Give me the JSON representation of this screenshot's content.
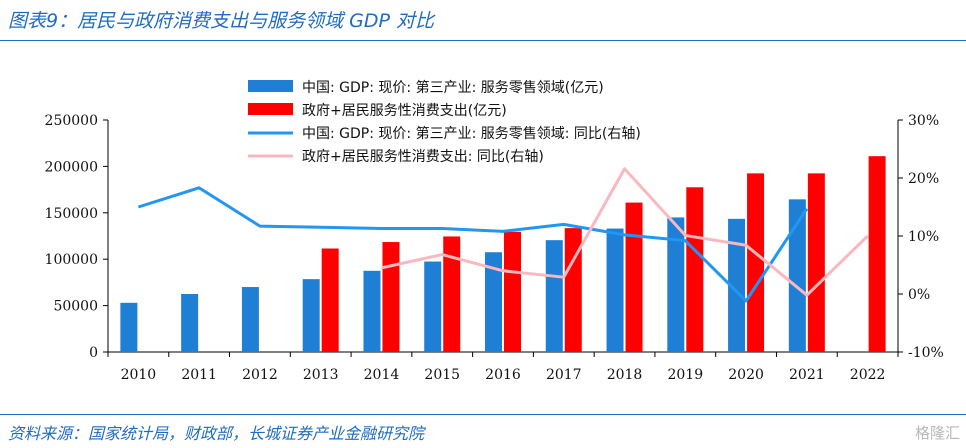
{
  "header": {
    "title": "图表9：居民与政府消费支出与服务领域 GDP 对比"
  },
  "footer": {
    "source": "资料来源：国家统计局，财政部，长城证券产业金融研究院",
    "watermark": "格隆汇"
  },
  "chart_data": {
    "type": "bar",
    "categories": [
      "2010",
      "2011",
      "2012",
      "2013",
      "2014",
      "2015",
      "2016",
      "2017",
      "2018",
      "2019",
      "2020",
      "2021",
      "2022"
    ],
    "series": [
      {
        "name": "中国:GDP:现价:第三产业:服务零售领域(亿元)",
        "kind": "bar",
        "axis": "left",
        "color": "#1f7fd4",
        "values": [
          53000,
          62500,
          70000,
          78500,
          87500,
          97500,
          107500,
          120500,
          133000,
          145000,
          143500,
          164500,
          null
        ]
      },
      {
        "name": "政府+居民服务性消费支出(亿元)",
        "kind": "bar",
        "axis": "left",
        "color": "#ff0000",
        "values": [
          null,
          null,
          null,
          111500,
          118500,
          124500,
          129500,
          133500,
          161000,
          177500,
          192500,
          192500,
          211000
        ]
      },
      {
        "name": "中国:GDP:现价:第三产业:服务零售领域:同比(右轴)",
        "kind": "line",
        "axis": "right",
        "color": "#2196f3",
        "values": [
          15,
          18.3,
          11.7,
          11.5,
          11.3,
          11.3,
          10.8,
          12,
          10.2,
          9.2,
          -1.2,
          14.7,
          null
        ]
      },
      {
        "name": "政府+居民服务性消费支出:同比(右轴)",
        "kind": "line",
        "axis": "right",
        "color": "#f9b8bf",
        "values": [
          null,
          null,
          null,
          null,
          4.5,
          6.8,
          4,
          2.9,
          21.6,
          10.1,
          8.4,
          -0.2,
          10
        ]
      }
    ],
    "left_axis": {
      "min": 0,
      "max": 250000,
      "ticks": [
        "0",
        "50000",
        "100000",
        "150000",
        "200000",
        "250000"
      ]
    },
    "right_axis": {
      "min": -10,
      "max": 30,
      "ticks": [
        "-10%",
        "0%",
        "10%",
        "20%",
        "30%"
      ]
    },
    "legend": {
      "position": "top-center",
      "items": [
        "中国: GDP: 现价: 第三产业: 服务零售领域(亿元)",
        "政府+居民服务性消费支出(亿元)",
        "中国: GDP: 现价: 第三产业: 服务零售领域: 同比(右轴)",
        "政府+居民服务性消费支出: 同比(右轴)"
      ]
    },
    "grid": false
  }
}
